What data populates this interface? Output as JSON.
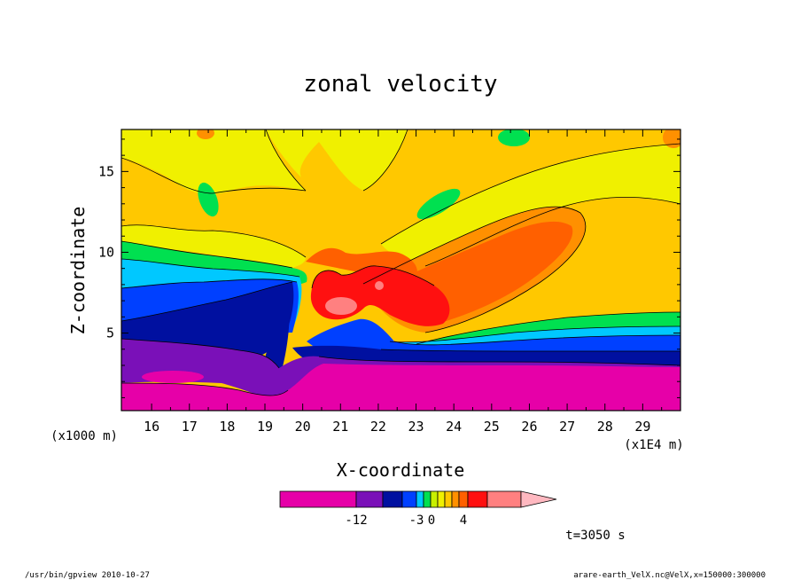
{
  "chart_data": {
    "type": "heatmap",
    "title": "zonal velocity",
    "xlabel": "X-coordinate",
    "ylabel": "Z-coordinate",
    "x_units": "(x1E4 m)",
    "y_units": "(x1000 m)",
    "xlim": [
      15.2,
      30.0
    ],
    "ylim": [
      0.2,
      17.6
    ],
    "x_ticks": [
      "16",
      "17",
      "18",
      "19",
      "20",
      "21",
      "22",
      "23",
      "24",
      "25",
      "26",
      "27",
      "28",
      "29"
    ],
    "y_ticks": [
      "5",
      "10",
      "15"
    ],
    "colorbar": {
      "tick_labels": [
        "-12",
        "-3",
        "0",
        "4"
      ],
      "colors": [
        "#e600a8",
        "#7a10b8",
        "#0010a0",
        "#0040ff",
        "#00c8ff",
        "#00e050",
        "#c8f000",
        "#f0f000",
        "#ffc800",
        "#ff9000",
        "#ff6000",
        "#ff1010",
        "#ff8080",
        "#ffb8c0"
      ]
    },
    "time_label": "t=3050 s"
  },
  "footer": {
    "left": "/usr/bin/gpview  2010-10-27",
    "right": "arare-earth_VelX.nc@VelX,x=150000:300000"
  }
}
